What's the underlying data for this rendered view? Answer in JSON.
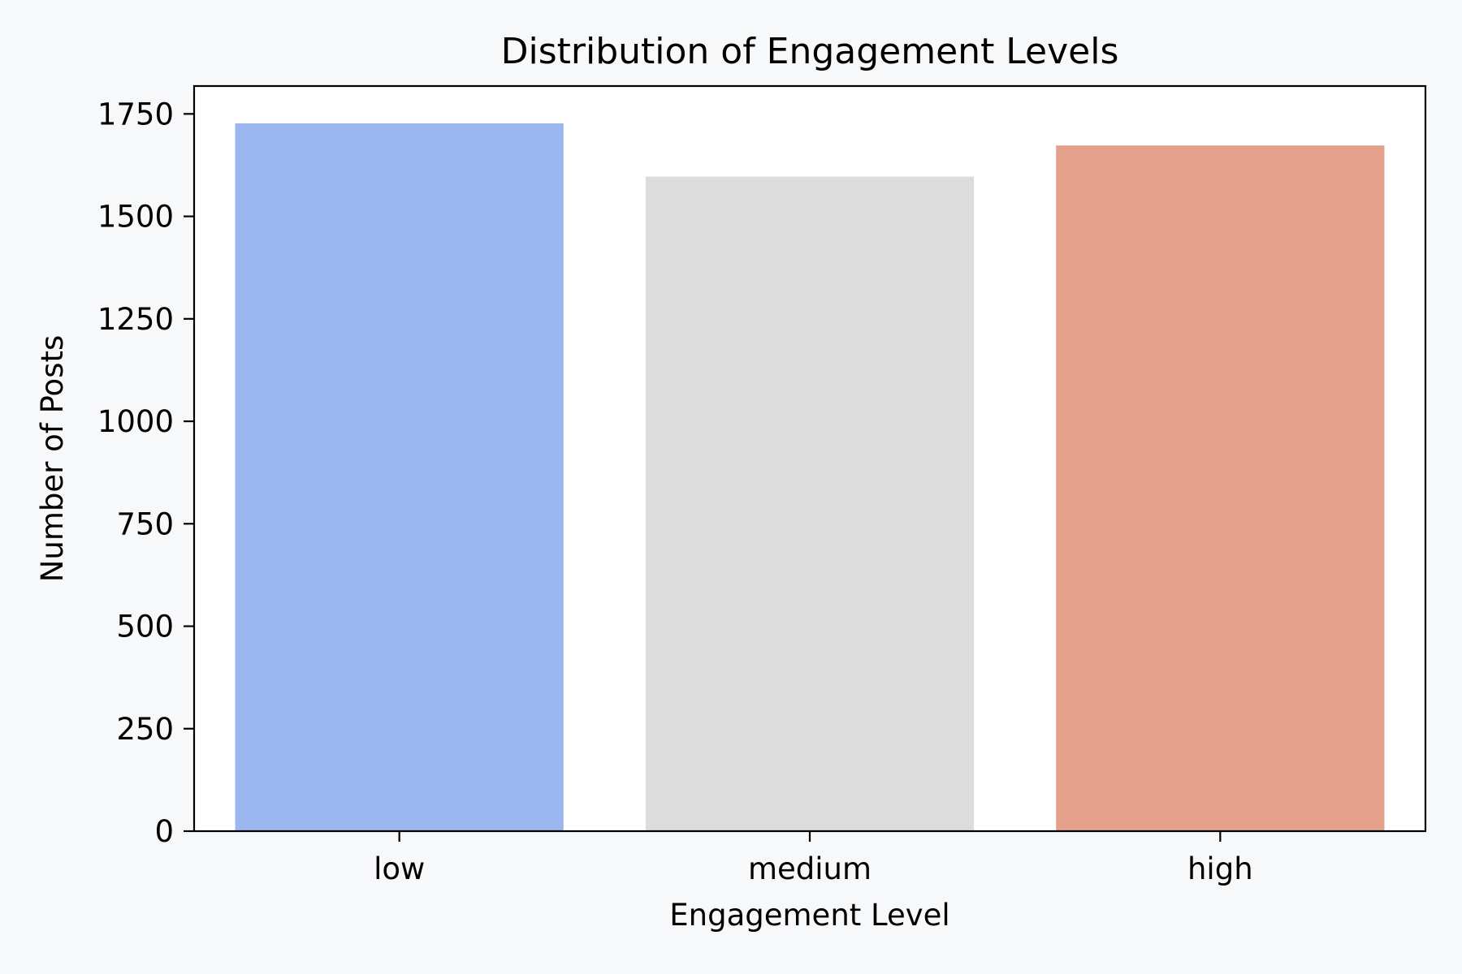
{
  "chart_data": {
    "type": "bar",
    "title": "Distribution of Engagement Levels",
    "xlabel": "Engagement Level",
    "ylabel": "Number of Posts",
    "categories": [
      "low",
      "medium",
      "high"
    ],
    "values": [
      1727,
      1597,
      1673
    ],
    "colors": [
      "#9bb5ef",
      "#dcdcdc",
      "#e4a08a"
    ],
    "ylim": [
      0,
      1818
    ],
    "yticks": [
      0,
      250,
      500,
      750,
      1000,
      1250,
      1500,
      1750
    ],
    "ytick_labels": [
      "0",
      "250",
      "500",
      "750",
      "1000",
      "1250",
      "1500",
      "1750"
    ],
    "grid": false,
    "background": "#f7f8fa",
    "plot_background": "#ffffff"
  }
}
